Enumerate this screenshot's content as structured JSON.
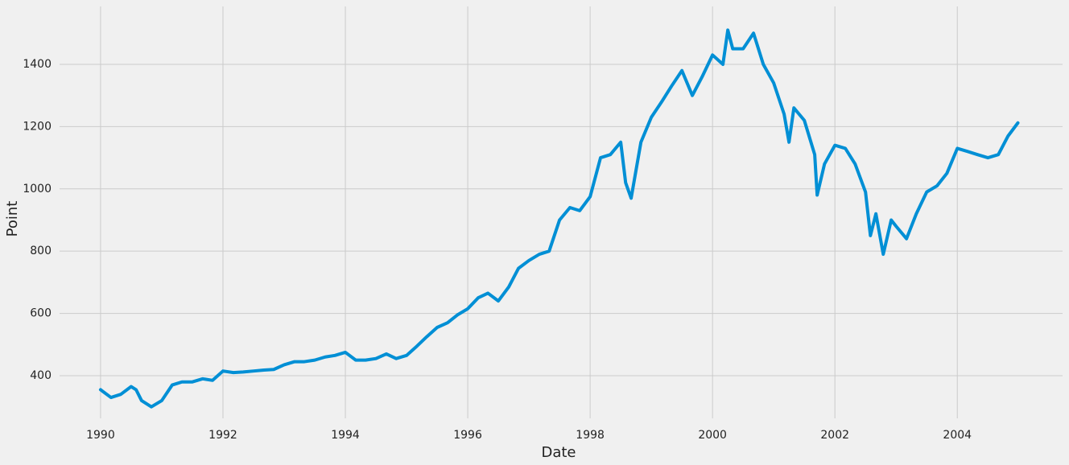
{
  "chart_data": {
    "type": "line",
    "xlabel": "Date",
    "ylabel": "Point",
    "x": [
      1990.0,
      1990.17,
      1990.33,
      1990.5,
      1990.58,
      1990.67,
      1990.83,
      1991.0,
      1991.17,
      1991.33,
      1991.5,
      1991.67,
      1991.83,
      1992.0,
      1992.17,
      1992.33,
      1992.5,
      1992.67,
      1992.83,
      1993.0,
      1993.17,
      1993.33,
      1993.5,
      1993.67,
      1993.83,
      1994.0,
      1994.17,
      1994.33,
      1994.5,
      1994.67,
      1994.83,
      1995.0,
      1995.17,
      1995.33,
      1995.5,
      1995.67,
      1995.83,
      1996.0,
      1996.17,
      1996.33,
      1996.5,
      1996.67,
      1996.83,
      1997.0,
      1997.17,
      1997.33,
      1997.5,
      1997.67,
      1997.83,
      1998.0,
      1998.17,
      1998.33,
      1998.5,
      1998.58,
      1998.67,
      1998.83,
      1999.0,
      1999.17,
      1999.33,
      1999.5,
      1999.67,
      1999.83,
      2000.0,
      2000.17,
      2000.25,
      2000.33,
      2000.5,
      2000.67,
      2000.83,
      2001.0,
      2001.17,
      2001.25,
      2001.33,
      2001.5,
      2001.67,
      2001.71,
      2001.83,
      2002.0,
      2002.17,
      2002.33,
      2002.5,
      2002.58,
      2002.67,
      2002.79,
      2002.92,
      2003.0,
      2003.17,
      2003.33,
      2003.5,
      2003.67,
      2003.83,
      2004.0,
      2004.17,
      2004.33,
      2004.5,
      2004.67,
      2004.83,
      2004.99
    ],
    "values": [
      355,
      330,
      340,
      365,
      355,
      320,
      300,
      320,
      370,
      380,
      380,
      390,
      385,
      415,
      410,
      412,
      415,
      418,
      420,
      435,
      445,
      445,
      450,
      460,
      465,
      475,
      450,
      450,
      455,
      470,
      455,
      465,
      495,
      525,
      555,
      570,
      595,
      615,
      650,
      665,
      640,
      685,
      745,
      770,
      790,
      800,
      900,
      940,
      930,
      975,
      1100,
      1110,
      1150,
      1020,
      970,
      1150,
      1230,
      1280,
      1330,
      1380,
      1300,
      1360,
      1430,
      1400,
      1510,
      1450,
      1450,
      1500,
      1400,
      1340,
      1240,
      1150,
      1260,
      1220,
      1110,
      980,
      1080,
      1140,
      1130,
      1080,
      990,
      850,
      920,
      790,
      900,
      880,
      840,
      920,
      990,
      1010,
      1050,
      1130,
      1120,
      1110,
      1100,
      1110,
      1170,
      1212
    ],
    "color": "#008fd5",
    "xlim": [
      1989.33,
      2005.72
    ],
    "xticks": [
      1990,
      1992,
      1994,
      1996,
      1998,
      2000,
      2002,
      2004
    ],
    "ylim": [
      263,
      1586
    ],
    "yticks": [
      400,
      600,
      800,
      1000,
      1200,
      1400
    ],
    "grid": true
  }
}
